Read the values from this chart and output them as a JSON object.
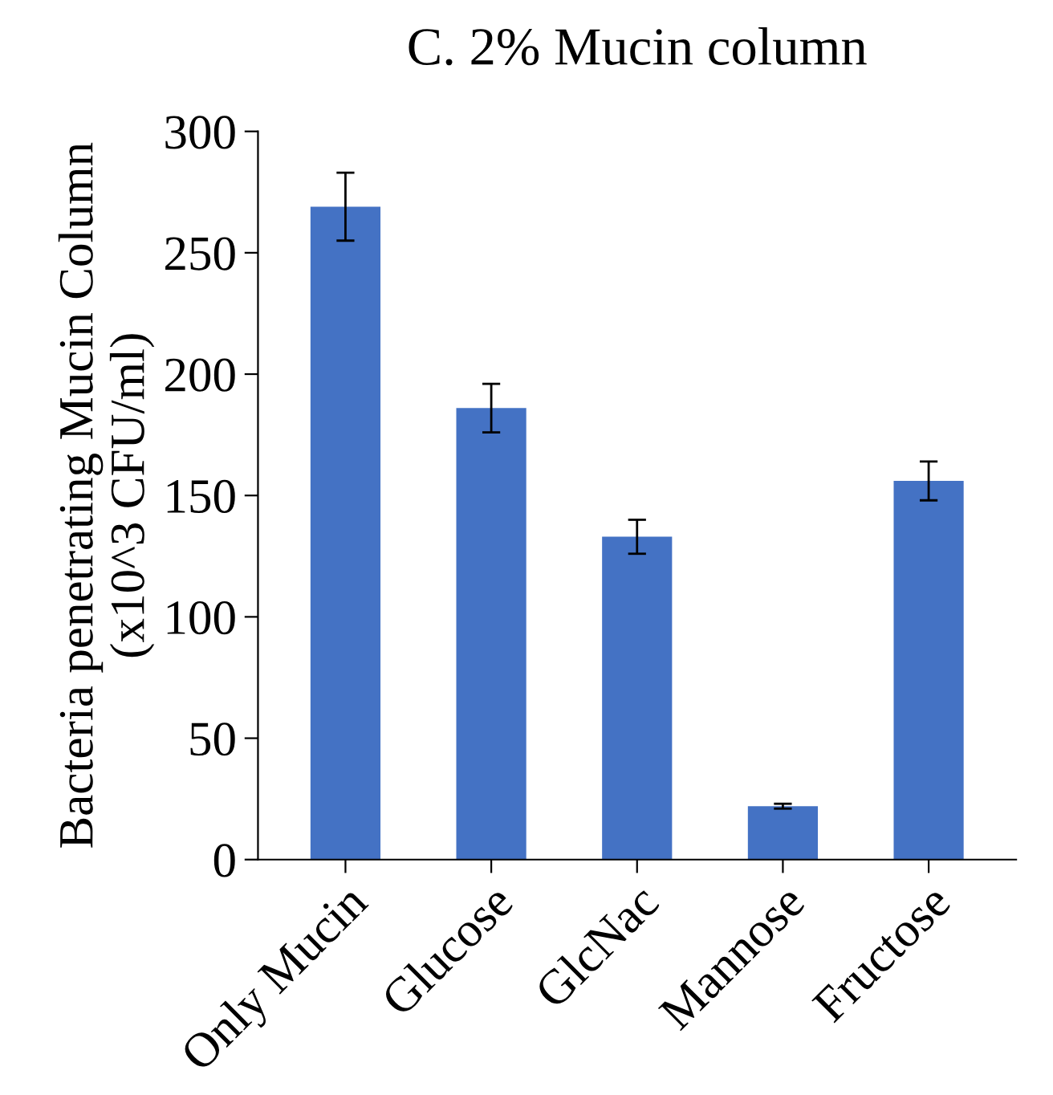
{
  "chart_data": {
    "type": "bar",
    "title": "C. 2% Mucin column",
    "ylabel": "Bacteria penetrating Mucin Column\n(x10^3 CFU/ml)",
    "categories": [
      "Only Mucin",
      "Glucose",
      "GlcNac",
      "Mannose",
      "Fructose"
    ],
    "values": [
      269,
      186,
      133,
      22,
      156
    ],
    "errors": [
      14,
      10,
      7,
      1,
      8
    ],
    "color": "#4472c4",
    "ylim": [
      0,
      300
    ],
    "yticks": [
      0,
      50,
      100,
      150,
      200,
      250,
      300
    ],
    "grid": false
  }
}
